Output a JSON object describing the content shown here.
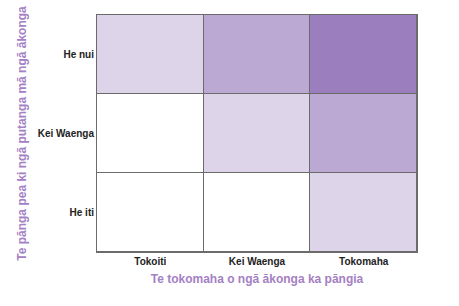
{
  "chart_data": {
    "type": "heatmap",
    "x_label": "Te tokomaha o ngā ākonga ka pāngia",
    "y_label": "Te pānga pea ki ngā putanga mā ngā ākonga",
    "x": [
      "Tokoiti",
      "Kei Waenga",
      "Tokomaha"
    ],
    "y": [
      "He iti",
      "Kei Waenga",
      "He nui"
    ],
    "cells": [
      [
        0,
        0,
        1
      ],
      [
        0,
        1,
        2
      ],
      [
        1,
        2,
        3
      ]
    ],
    "color": "#9a7ebd"
  }
}
